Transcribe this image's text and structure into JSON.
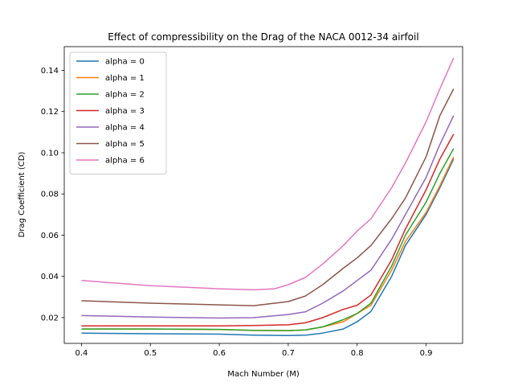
{
  "chart_data": {
    "type": "line",
    "title": "Effect of compressibility on the Drag of the NACA 0012-34 airfoil",
    "xlabel": "Mach Number (M)",
    "ylabel": "Drag Coefficient (CD)",
    "xlim": [
      0.375,
      0.953
    ],
    "ylim": [
      0.0075,
      0.1515
    ],
    "xticks": [
      "0.4",
      "0.5",
      "0.6",
      "0.7",
      "0.8",
      "0.9"
    ],
    "xtick_values": [
      0.4,
      0.5,
      0.6,
      0.7,
      0.8,
      0.9
    ],
    "yticks": [
      "0.02",
      "0.04",
      "0.06",
      "0.08",
      "0.10",
      "0.12",
      "0.14"
    ],
    "ytick_values": [
      0.02,
      0.04,
      0.06,
      0.08,
      0.1,
      0.12,
      0.14
    ],
    "grid": false,
    "legend_position": "top-left",
    "series": [
      {
        "name": "alpha = 0",
        "color": "#1f77b4",
        "x": [
          0.4,
          0.5,
          0.6,
          0.65,
          0.7,
          0.725,
          0.75,
          0.78,
          0.8,
          0.82,
          0.85,
          0.87,
          0.9,
          0.92,
          0.94
        ],
        "y": [
          0.0125,
          0.0122,
          0.012,
          0.0115,
          0.0113,
          0.0115,
          0.0125,
          0.0145,
          0.018,
          0.023,
          0.04,
          0.055,
          0.07,
          0.083,
          0.097
        ]
      },
      {
        "name": "alpha = 1",
        "color": "#ff7f0e",
        "x": [
          0.4,
          0.5,
          0.6,
          0.65,
          0.7,
          0.725,
          0.75,
          0.78,
          0.8,
          0.82,
          0.85,
          0.87,
          0.9,
          0.92,
          0.94
        ],
        "y": [
          0.0145,
          0.0145,
          0.0142,
          0.0138,
          0.0137,
          0.014,
          0.0155,
          0.018,
          0.022,
          0.026,
          0.043,
          0.057,
          0.071,
          0.084,
          0.098
        ]
      },
      {
        "name": "alpha = 2",
        "color": "#2ca02c",
        "x": [
          0.4,
          0.5,
          0.6,
          0.65,
          0.7,
          0.725,
          0.75,
          0.78,
          0.8,
          0.82,
          0.85,
          0.87,
          0.9,
          0.92,
          0.94
        ],
        "y": [
          0.0145,
          0.0145,
          0.0143,
          0.0138,
          0.0137,
          0.014,
          0.0155,
          0.019,
          0.022,
          0.027,
          0.045,
          0.06,
          0.076,
          0.09,
          0.102
        ]
      },
      {
        "name": "alpha = 3",
        "color": "#d62728",
        "x": [
          0.4,
          0.5,
          0.6,
          0.65,
          0.7,
          0.725,
          0.75,
          0.78,
          0.8,
          0.82,
          0.85,
          0.87,
          0.9,
          0.92,
          0.94
        ],
        "y": [
          0.016,
          0.016,
          0.016,
          0.0162,
          0.0165,
          0.0175,
          0.02,
          0.024,
          0.026,
          0.031,
          0.048,
          0.063,
          0.082,
          0.097,
          0.109
        ]
      },
      {
        "name": "alpha = 4",
        "color": "#9467bd",
        "x": [
          0.4,
          0.5,
          0.6,
          0.65,
          0.7,
          0.725,
          0.75,
          0.78,
          0.8,
          0.82,
          0.85,
          0.87,
          0.9,
          0.92,
          0.94
        ],
        "y": [
          0.021,
          0.0203,
          0.0198,
          0.02,
          0.0215,
          0.0228,
          0.027,
          0.033,
          0.038,
          0.043,
          0.058,
          0.07,
          0.088,
          0.104,
          0.118
        ]
      },
      {
        "name": "alpha = 5",
        "color": "#8c564b",
        "x": [
          0.4,
          0.5,
          0.6,
          0.65,
          0.7,
          0.725,
          0.75,
          0.78,
          0.8,
          0.82,
          0.85,
          0.87,
          0.9,
          0.92,
          0.94
        ],
        "y": [
          0.0282,
          0.027,
          0.0262,
          0.0258,
          0.0278,
          0.0305,
          0.036,
          0.044,
          0.049,
          0.055,
          0.068,
          0.078,
          0.098,
          0.118,
          0.131
        ]
      },
      {
        "name": "alpha = 6",
        "color": "#e377c2",
        "x": [
          0.4,
          0.5,
          0.6,
          0.65,
          0.68,
          0.7,
          0.725,
          0.75,
          0.78,
          0.8,
          0.82,
          0.85,
          0.87,
          0.9,
          0.92,
          0.94
        ],
        "y": [
          0.038,
          0.0355,
          0.034,
          0.0335,
          0.034,
          0.036,
          0.0395,
          0.046,
          0.055,
          0.062,
          0.068,
          0.083,
          0.095,
          0.115,
          0.131,
          0.146
        ]
      }
    ]
  }
}
